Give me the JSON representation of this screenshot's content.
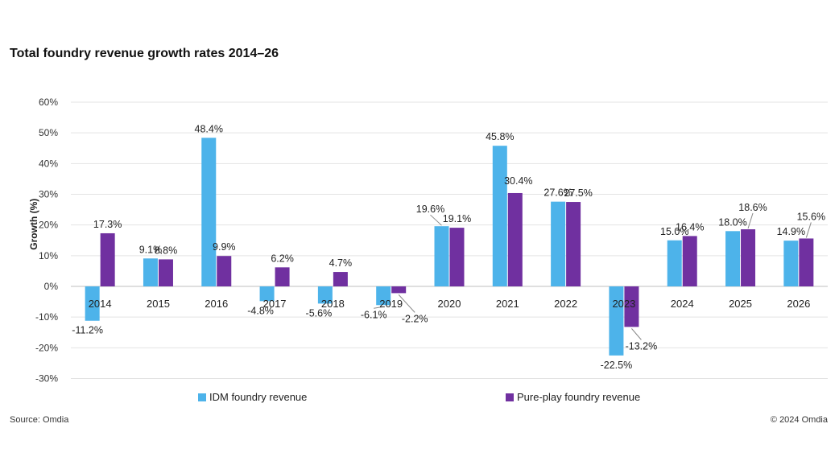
{
  "chart_data": {
    "type": "bar",
    "title": "Total foundry revenue growth rates 2014–26",
    "ylabel": "Growth (%)",
    "xlabel": "",
    "categories": [
      "2014",
      "2015",
      "2016",
      "2017",
      "2018",
      "2019",
      "2020",
      "2021",
      "2022",
      "2023",
      "2024",
      "2025",
      "2026"
    ],
    "series": [
      {
        "name": "IDM foundry revenue",
        "color": "#4db3ea",
        "values": [
          -11.2,
          9.1,
          48.4,
          -4.8,
          -5.6,
          -6.1,
          19.6,
          45.8,
          27.6,
          -22.5,
          15.0,
          18.0,
          14.9
        ],
        "labels": [
          "-11.2%",
          "9.1%",
          "48.4%",
          "-4.8%",
          "-5.6%",
          "-6.1%",
          "19.6%",
          "45.8%",
          "27.6%",
          "-22.5%",
          "15.0%",
          "18.0%",
          "14.9%"
        ]
      },
      {
        "name": "Pure-play foundry revenue",
        "color": "#7030a0",
        "values": [
          17.3,
          8.8,
          9.9,
          6.2,
          4.7,
          -2.2,
          19.1,
          30.4,
          27.5,
          -13.2,
          16.4,
          18.6,
          15.6
        ],
        "labels": [
          "17.3%",
          "8.8%",
          "9.9%",
          "6.2%",
          "4.7%",
          "-2.2%",
          "19.1%",
          "30.4%",
          "27.5%",
          "-13.2%",
          "16.4%",
          "18.6%",
          "15.6%"
        ]
      }
    ],
    "ylim": [
      -30,
      60
    ],
    "yticks": [
      -30,
      -20,
      -10,
      0,
      10,
      20,
      30,
      40,
      50,
      60
    ],
    "ytick_labels": [
      "-30%",
      "-20%",
      "-10%",
      "0%",
      "10%",
      "20%",
      "30%",
      "40%",
      "50%",
      "60%"
    ],
    "grid": true,
    "legend": "bottom"
  },
  "footer": {
    "source": "Source: Omdia",
    "copyright": "© 2024 Omdia"
  }
}
